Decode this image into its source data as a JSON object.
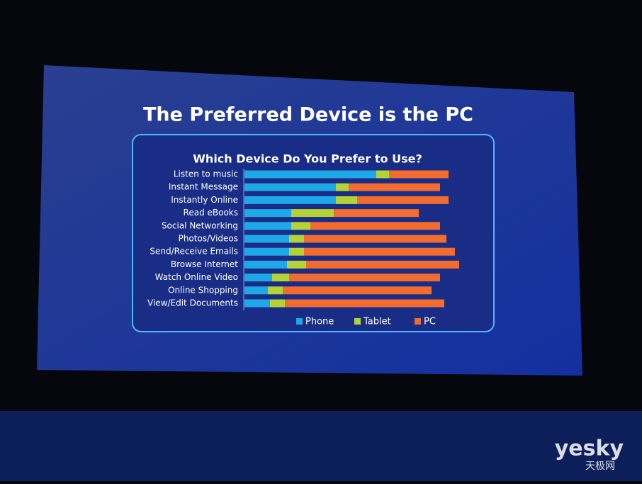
{
  "chart_data": {
    "type": "stacked-bar-horizontal",
    "title": "The Preferred Device is the PC",
    "subtitle": "Which Device Do You Prefer to Use?",
    "categories": [
      "Listen to music",
      "Instant Message",
      "Instantly Online",
      "Read eBooks",
      "Social Networking",
      "Photos/Videos",
      "Send/Receive Emails",
      "Browse Internet",
      "Watch Online Video",
      "Online Shopping",
      "View/Edit Documents"
    ],
    "series": [
      {
        "name": "Phone",
        "color": "#1ea8e8",
        "values": [
          62,
          43,
          43,
          22,
          22,
          21,
          21,
          20,
          13,
          11,
          12
        ]
      },
      {
        "name": "Tablet",
        "color": "#b5d334",
        "values": [
          6,
          6,
          10,
          20,
          9,
          7,
          7,
          9,
          8,
          7,
          7
        ]
      },
      {
        "name": "PC",
        "color": "#f26b2f",
        "values": [
          28,
          43,
          43,
          40,
          61,
          67,
          71,
          72,
          71,
          70,
          75
        ]
      }
    ]
  },
  "watermark": {
    "brand": "yesky",
    "site": "天极网"
  }
}
